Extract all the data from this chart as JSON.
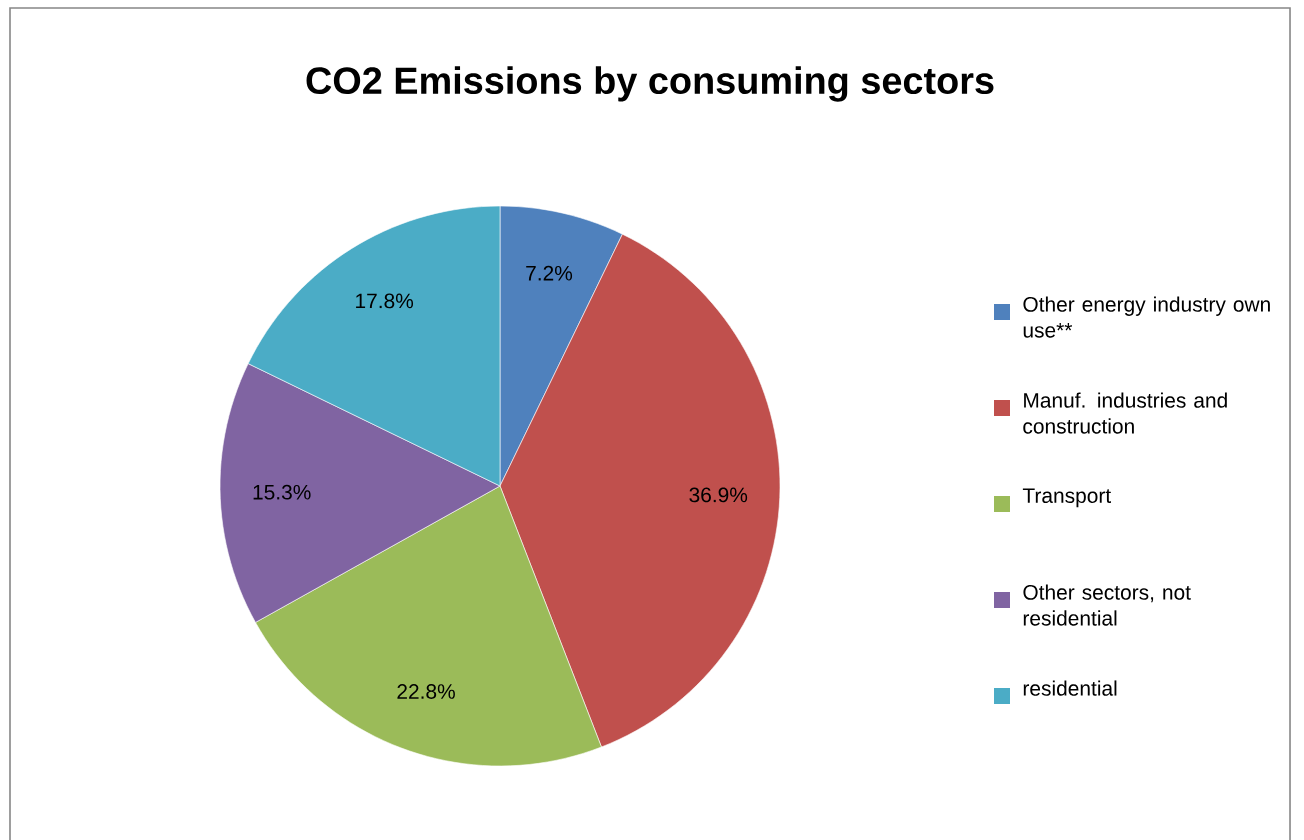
{
  "chart_data": {
    "type": "pie",
    "title": "CO2 Emissions by consuming sectors",
    "categories": [
      "Other energy industry own use**",
      "Manuf. industries and construction",
      "Transport",
      "Other sectors, not residential",
      "residential"
    ],
    "values": [
      7.2,
      36.9,
      22.8,
      15.3,
      17.8
    ],
    "value_labels": [
      "7.2%",
      "36.9%",
      "22.8%",
      "15.3%",
      "17.8%"
    ],
    "colors": [
      "#4f81bd",
      "#c0504d",
      "#9bbb59",
      "#8064a2",
      "#4bacc6"
    ],
    "legend": "right"
  }
}
